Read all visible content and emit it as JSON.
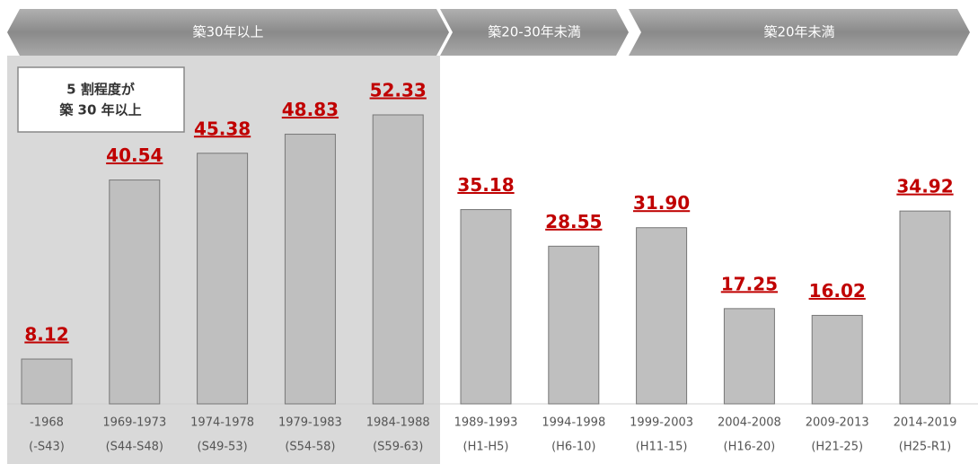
{
  "chart_data": {
    "type": "bar",
    "categories": [
      "-1968",
      "1969-1973",
      "1974-1978",
      "1979-1983",
      "1984-1988",
      "1989-1993",
      "1994-1998",
      "1999-2003",
      "2004-2008",
      "2009-2013",
      "2014-2019"
    ],
    "category_sublabels": [
      "(-S43)",
      "(S44-S48)",
      "(S49-53)",
      "(S54-58)",
      "(S59-63)",
      "(H1-H5)",
      "(H6-10)",
      "(H11-15)",
      "(H16-20)",
      "(H21-25)",
      "(H25-R1)"
    ],
    "values": [
      8.12,
      40.54,
      45.38,
      48.83,
      52.33,
      35.18,
      28.55,
      31.9,
      17.25,
      16.02,
      34.92
    ],
    "value_labels": [
      "8.12",
      "40.54",
      "45.38",
      "48.83",
      "52.33",
      "35.18",
      "28.55",
      "31.90",
      "17.25",
      "16.02",
      "34.92"
    ],
    "color": "#bfbfbf",
    "segments": [
      "築30年以上",
      "築20-30年未満",
      "築20年未満"
    ],
    "annotation": [
      "5 割程度が",
      "築 30 年以上"
    ]
  }
}
